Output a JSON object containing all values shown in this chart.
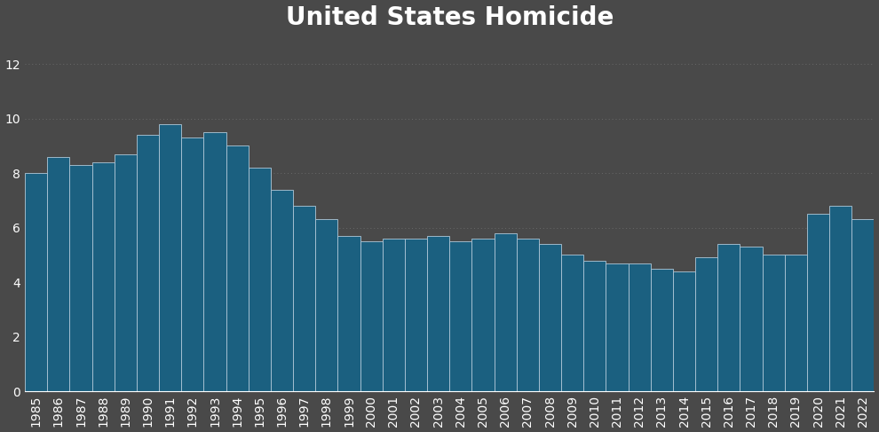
{
  "title": "United States Homicide",
  "years": [
    1985,
    1986,
    1987,
    1988,
    1989,
    1990,
    1991,
    1992,
    1993,
    1994,
    1995,
    1996,
    1997,
    1998,
    1999,
    2000,
    2001,
    2002,
    2003,
    2004,
    2005,
    2006,
    2007,
    2008,
    2009,
    2010,
    2011,
    2012,
    2013,
    2014,
    2015,
    2016,
    2017,
    2018,
    2019,
    2020,
    2021,
    2022
  ],
  "values": [
    8.0,
    8.6,
    8.3,
    8.4,
    8.7,
    9.4,
    9.8,
    9.3,
    9.5,
    9.0,
    8.2,
    7.4,
    6.8,
    6.3,
    5.7,
    5.5,
    5.6,
    5.6,
    5.7,
    5.5,
    5.6,
    5.8,
    5.6,
    5.4,
    5.0,
    4.8,
    4.7,
    4.7,
    4.5,
    4.4,
    4.9,
    5.4,
    5.3,
    5.0,
    5.0,
    6.5,
    6.8,
    6.3
  ],
  "bar_color": "#1b6080",
  "bar_edge_color": "#b0c8d8",
  "background_color": "#494949",
  "text_color": "#ffffff",
  "grid_color": "#777777",
  "title_fontsize": 20,
  "tick_fontsize": 10,
  "ylim": [
    0,
    13
  ],
  "yticks": [
    0,
    2,
    4,
    6,
    8,
    10,
    12
  ]
}
